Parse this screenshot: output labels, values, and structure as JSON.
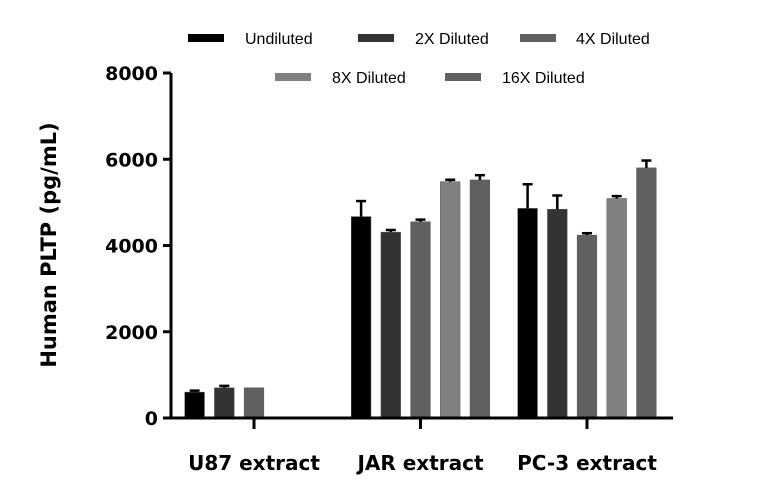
{
  "chart_data": {
    "type": "bar",
    "title": "",
    "xlabel": "",
    "ylabel": "Human PLTP (pg/mL)",
    "ylim": [
      0,
      8000
    ],
    "yticks": [
      0,
      2000,
      4000,
      6000,
      8000
    ],
    "ytick_labels": [
      "0",
      "2000",
      "4000",
      "6000",
      "8000"
    ],
    "categories": [
      "U87 extract",
      "JAR extract",
      "PC-3 extract"
    ],
    "legend_position": "top",
    "grid": false,
    "series": [
      {
        "name": "Undiluted",
        "color": "#000000",
        "values": [
          600,
          4670,
          4860
        ],
        "error": [
          35,
          360,
          560
        ]
      },
      {
        "name": "2X Diluted",
        "color": "#333333",
        "values": [
          700,
          4310,
          4840
        ],
        "error": [
          45,
          50,
          320
        ]
      },
      {
        "name": "4X Diluted",
        "color": "#606060",
        "values": [
          700,
          4550,
          4240
        ],
        "error": [
          0,
          50,
          45
        ]
      },
      {
        "name": "8X Diluted",
        "color": "#808080",
        "values": [
          null,
          5480,
          5090
        ],
        "error": [
          0,
          45,
          55
        ]
      },
      {
        "name": "16X Diluted",
        "color": "#606060",
        "values": [
          null,
          5520,
          5800
        ],
        "error": [
          0,
          110,
          170
        ]
      }
    ]
  }
}
